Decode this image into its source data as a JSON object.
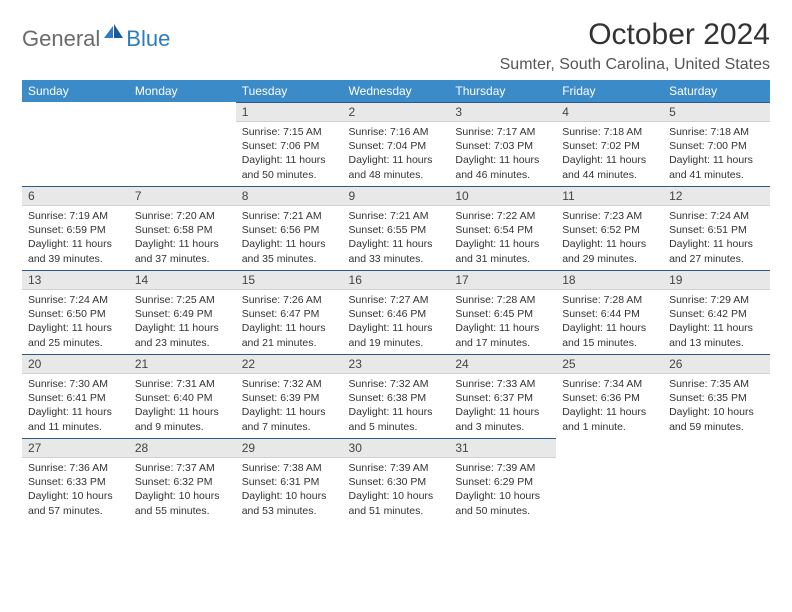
{
  "logo": {
    "general": "General",
    "blue": "Blue"
  },
  "title": "October 2024",
  "location": "Sumter, South Carolina, United States",
  "colors": {
    "header_bg": "#3b8bc9",
    "header_text": "#ffffff",
    "daynum_bg": "#e8e8e8",
    "daynum_border_top": "#2a5a8a",
    "logo_blue": "#2f7bbf",
    "logo_gray": "#6b6b6b"
  },
  "weekdays": [
    "Sunday",
    "Monday",
    "Tuesday",
    "Wednesday",
    "Thursday",
    "Friday",
    "Saturday"
  ],
  "grid": [
    [
      null,
      null,
      {
        "n": "1",
        "sr": "7:15 AM",
        "ss": "7:06 PM",
        "dl": "11 hours and 50 minutes."
      },
      {
        "n": "2",
        "sr": "7:16 AM",
        "ss": "7:04 PM",
        "dl": "11 hours and 48 minutes."
      },
      {
        "n": "3",
        "sr": "7:17 AM",
        "ss": "7:03 PM",
        "dl": "11 hours and 46 minutes."
      },
      {
        "n": "4",
        "sr": "7:18 AM",
        "ss": "7:02 PM",
        "dl": "11 hours and 44 minutes."
      },
      {
        "n": "5",
        "sr": "7:18 AM",
        "ss": "7:00 PM",
        "dl": "11 hours and 41 minutes."
      }
    ],
    [
      {
        "n": "6",
        "sr": "7:19 AM",
        "ss": "6:59 PM",
        "dl": "11 hours and 39 minutes."
      },
      {
        "n": "7",
        "sr": "7:20 AM",
        "ss": "6:58 PM",
        "dl": "11 hours and 37 minutes."
      },
      {
        "n": "8",
        "sr": "7:21 AM",
        "ss": "6:56 PM",
        "dl": "11 hours and 35 minutes."
      },
      {
        "n": "9",
        "sr": "7:21 AM",
        "ss": "6:55 PM",
        "dl": "11 hours and 33 minutes."
      },
      {
        "n": "10",
        "sr": "7:22 AM",
        "ss": "6:54 PM",
        "dl": "11 hours and 31 minutes."
      },
      {
        "n": "11",
        "sr": "7:23 AM",
        "ss": "6:52 PM",
        "dl": "11 hours and 29 minutes."
      },
      {
        "n": "12",
        "sr": "7:24 AM",
        "ss": "6:51 PM",
        "dl": "11 hours and 27 minutes."
      }
    ],
    [
      {
        "n": "13",
        "sr": "7:24 AM",
        "ss": "6:50 PM",
        "dl": "11 hours and 25 minutes."
      },
      {
        "n": "14",
        "sr": "7:25 AM",
        "ss": "6:49 PM",
        "dl": "11 hours and 23 minutes."
      },
      {
        "n": "15",
        "sr": "7:26 AM",
        "ss": "6:47 PM",
        "dl": "11 hours and 21 minutes."
      },
      {
        "n": "16",
        "sr": "7:27 AM",
        "ss": "6:46 PM",
        "dl": "11 hours and 19 minutes."
      },
      {
        "n": "17",
        "sr": "7:28 AM",
        "ss": "6:45 PM",
        "dl": "11 hours and 17 minutes."
      },
      {
        "n": "18",
        "sr": "7:28 AM",
        "ss": "6:44 PM",
        "dl": "11 hours and 15 minutes."
      },
      {
        "n": "19",
        "sr": "7:29 AM",
        "ss": "6:42 PM",
        "dl": "11 hours and 13 minutes."
      }
    ],
    [
      {
        "n": "20",
        "sr": "7:30 AM",
        "ss": "6:41 PM",
        "dl": "11 hours and 11 minutes."
      },
      {
        "n": "21",
        "sr": "7:31 AM",
        "ss": "6:40 PM",
        "dl": "11 hours and 9 minutes."
      },
      {
        "n": "22",
        "sr": "7:32 AM",
        "ss": "6:39 PM",
        "dl": "11 hours and 7 minutes."
      },
      {
        "n": "23",
        "sr": "7:32 AM",
        "ss": "6:38 PM",
        "dl": "11 hours and 5 minutes."
      },
      {
        "n": "24",
        "sr": "7:33 AM",
        "ss": "6:37 PM",
        "dl": "11 hours and 3 minutes."
      },
      {
        "n": "25",
        "sr": "7:34 AM",
        "ss": "6:36 PM",
        "dl": "11 hours and 1 minute."
      },
      {
        "n": "26",
        "sr": "7:35 AM",
        "ss": "6:35 PM",
        "dl": "10 hours and 59 minutes."
      }
    ],
    [
      {
        "n": "27",
        "sr": "7:36 AM",
        "ss": "6:33 PM",
        "dl": "10 hours and 57 minutes."
      },
      {
        "n": "28",
        "sr": "7:37 AM",
        "ss": "6:32 PM",
        "dl": "10 hours and 55 minutes."
      },
      {
        "n": "29",
        "sr": "7:38 AM",
        "ss": "6:31 PM",
        "dl": "10 hours and 53 minutes."
      },
      {
        "n": "30",
        "sr": "7:39 AM",
        "ss": "6:30 PM",
        "dl": "10 hours and 51 minutes."
      },
      {
        "n": "31",
        "sr": "7:39 AM",
        "ss": "6:29 PM",
        "dl": "10 hours and 50 minutes."
      },
      null,
      null
    ]
  ],
  "labels": {
    "sunrise": "Sunrise:",
    "sunset": "Sunset:",
    "daylight": "Daylight:"
  }
}
